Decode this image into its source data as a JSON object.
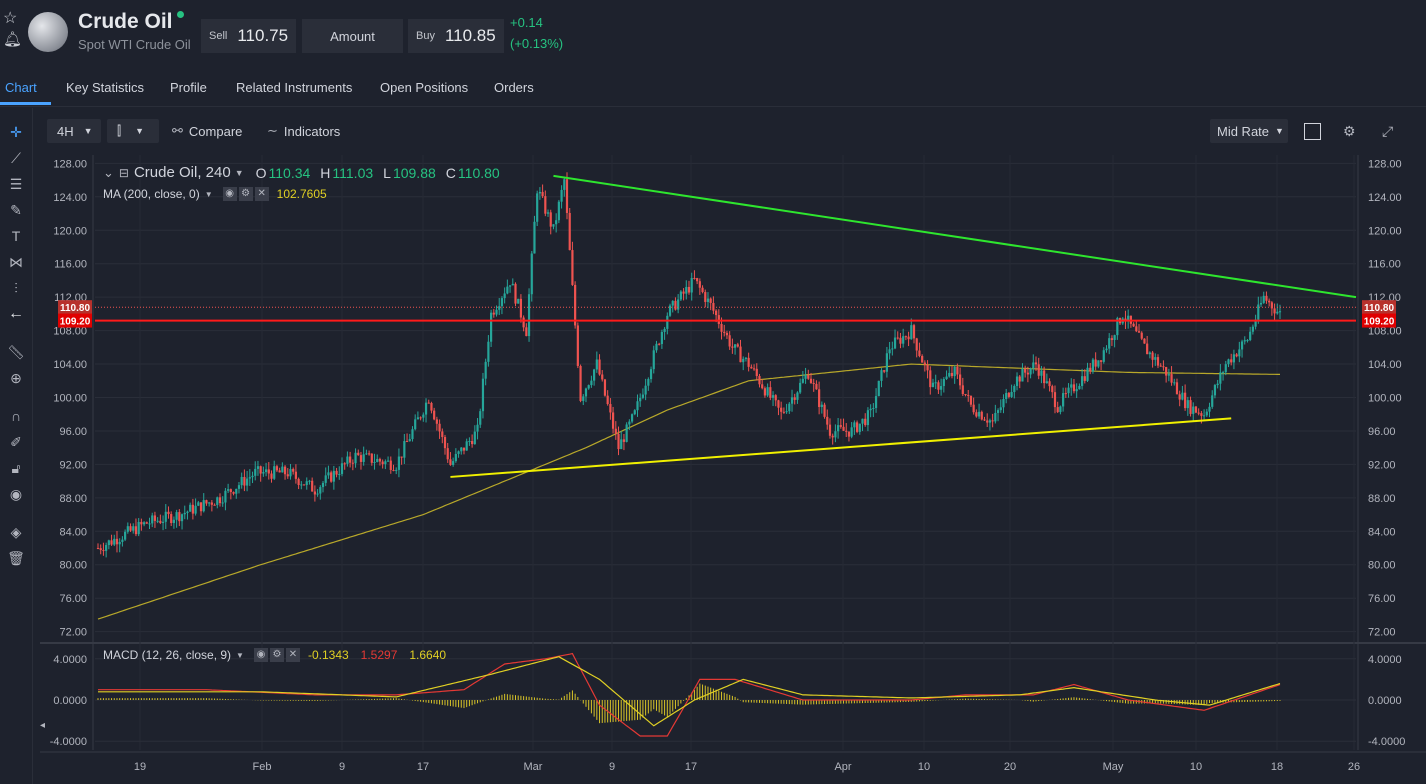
{
  "header": {
    "instrument_name": "Crude Oil",
    "instrument_subtitle": "Spot WTI Crude Oil",
    "sell_label": "Sell",
    "sell_price": "110.75",
    "amount_label": "Amount",
    "buy_label": "Buy",
    "buy_price": "110.85",
    "change_abs": "+0.14",
    "change_pct": "(+0.13%)",
    "status_color": "#26c281"
  },
  "tabs": [
    {
      "label": "Chart",
      "active": true
    },
    {
      "label": "Key Statistics"
    },
    {
      "label": "Profile"
    },
    {
      "label": "Related Instruments"
    },
    {
      "label": "Open Positions"
    },
    {
      "label": "Orders"
    }
  ],
  "left_tools": [
    "crosshair-icon",
    "trend-line-icon",
    "horizontal-lines-icon",
    "brush-icon",
    "text-icon",
    "pattern-icon",
    "fib-icon",
    "back-arrow-icon",
    "ruler-icon",
    "zoom-in-icon",
    "magnet-icon",
    "lock-draw-icon",
    "lock-icon",
    "eye-icon",
    "layers-icon",
    "trash-icon"
  ],
  "toolbar": {
    "interval": "4H",
    "compare_label": "Compare",
    "indicators_label": "Indicators",
    "rate_label": "Mid Rate"
  },
  "legend": {
    "symbol": "Crude Oil, 240",
    "o_label": "O",
    "o_val": "110.34",
    "h_label": "H",
    "h_val": "111.03",
    "l_label": "L",
    "l_val": "109.88",
    "c_label": "C",
    "c_val": "110.80",
    "ma_label": "MA (200, close, 0)",
    "ma_val": "102.7605",
    "macd_label": "MACD (12, 26, close, 9)",
    "macd_hist": "-0.1343",
    "macd_line": "1.5297",
    "macd_signal": "1.6640"
  },
  "colors": {
    "up": "#26a69a",
    "down": "#ef5350",
    "ma": "#b8a82a",
    "macd_line": "#e53935",
    "macd_signal": "#e0d024",
    "trend_upper": "#2ee62e",
    "trend_lower": "#f0f000",
    "support": "#ff1a1a"
  },
  "chart_data": {
    "type": "candlestick",
    "price_axis": {
      "ticks": [
        128.0,
        124.0,
        120.0,
        116.0,
        112.0,
        108.0,
        104.0,
        100.0,
        96.0,
        92.0,
        88.0,
        84.0,
        80.0,
        76.0,
        72.0
      ],
      "range": [
        71,
        129
      ]
    },
    "time_axis": {
      "labels": [
        "19",
        "Feb",
        "9",
        "17",
        "Mar",
        "9",
        "17",
        "Apr",
        "10",
        "20",
        "May",
        "10",
        "18",
        "26"
      ]
    },
    "price_path": [
      [
        0,
        82
      ],
      [
        18,
        85
      ],
      [
        30,
        86
      ],
      [
        45,
        88
      ],
      [
        58,
        91
      ],
      [
        70,
        91
      ],
      [
        80,
        89
      ],
      [
        95,
        93
      ],
      [
        110,
        92
      ],
      [
        122,
        100
      ],
      [
        130,
        92
      ],
      [
        140,
        96
      ],
      [
        145,
        110
      ],
      [
        152,
        114
      ],
      [
        158,
        108
      ],
      [
        162,
        125
      ],
      [
        168,
        120
      ],
      [
        172,
        126
      ],
      [
        178,
        100
      ],
      [
        184,
        104
      ],
      [
        192,
        94
      ],
      [
        198,
        98
      ],
      [
        210,
        110
      ],
      [
        220,
        114
      ],
      [
        226,
        111
      ],
      [
        234,
        106
      ],
      [
        240,
        104
      ],
      [
        252,
        98
      ],
      [
        262,
        103
      ],
      [
        270,
        96
      ],
      [
        278,
        96
      ],
      [
        285,
        98
      ],
      [
        292,
        106
      ],
      [
        300,
        108
      ],
      [
        308,
        101
      ],
      [
        316,
        103
      ],
      [
        322,
        99
      ],
      [
        330,
        97
      ],
      [
        338,
        102
      ],
      [
        346,
        104
      ],
      [
        354,
        99
      ],
      [
        362,
        102
      ],
      [
        370,
        105
      ],
      [
        378,
        110
      ],
      [
        386,
        106
      ],
      [
        394,
        103
      ],
      [
        402,
        99
      ],
      [
        408,
        98
      ],
      [
        416,
        104
      ],
      [
        424,
        107
      ],
      [
        430,
        112
      ],
      [
        436,
        110
      ]
    ],
    "current_price": 110.8,
    "support_level": 109.2,
    "ma_path": [
      [
        0,
        73.5
      ],
      [
        60,
        80
      ],
      [
        120,
        86
      ],
      [
        150,
        90
      ],
      [
        180,
        94
      ],
      [
        210,
        98.5
      ],
      [
        240,
        102
      ],
      [
        300,
        104
      ],
      [
        380,
        103
      ],
      [
        436,
        102.76
      ]
    ],
    "trendline_upper": [
      [
        168,
        126.5
      ],
      [
        436,
        112
      ]
    ],
    "trendline_lower": [
      [
        130,
        90.5
      ],
      [
        418,
        97.5
      ]
    ],
    "macd_axis": {
      "ticks": [
        4.0,
        0.0,
        -4.0
      ]
    },
    "macd_path": [
      [
        0,
        1
      ],
      [
        40,
        1
      ],
      [
        80,
        0.5
      ],
      [
        110,
        0.5
      ],
      [
        135,
        1
      ],
      [
        150,
        3.5
      ],
      [
        165,
        4
      ],
      [
        175,
        4.5
      ],
      [
        185,
        -0.5
      ],
      [
        200,
        -3.5
      ],
      [
        210,
        -3.5
      ],
      [
        222,
        2
      ],
      [
        235,
        2
      ],
      [
        260,
        0
      ],
      [
        300,
        0
      ],
      [
        320,
        0.5
      ],
      [
        345,
        0.5
      ],
      [
        360,
        1.5
      ],
      [
        380,
        0
      ],
      [
        408,
        -1
      ],
      [
        436,
        1.5
      ]
    ],
    "signal_path": [
      [
        0,
        0.8
      ],
      [
        60,
        0.8
      ],
      [
        110,
        0.3
      ],
      [
        145,
        2.5
      ],
      [
        170,
        4.2
      ],
      [
        185,
        2
      ],
      [
        205,
        -2.5
      ],
      [
        220,
        0
      ],
      [
        238,
        2
      ],
      [
        260,
        0.5
      ],
      [
        300,
        0.2
      ],
      [
        340,
        0.5
      ],
      [
        360,
        1.2
      ],
      [
        390,
        0
      ],
      [
        410,
        -0.5
      ],
      [
        436,
        1.6
      ]
    ]
  }
}
